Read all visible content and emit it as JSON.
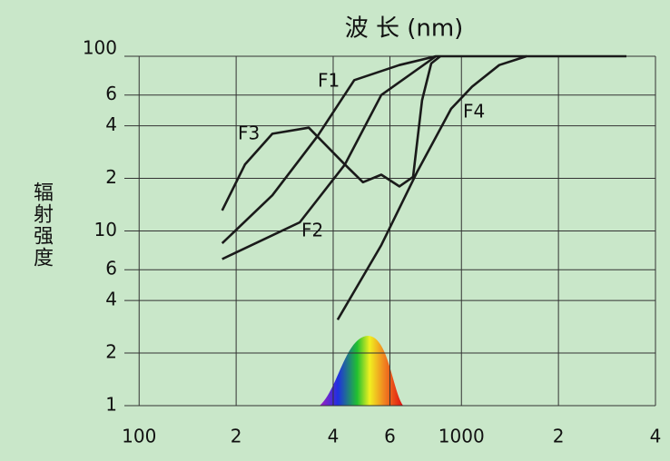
{
  "chart_data": {
    "type": "line",
    "xlabel": "波 长 (nm)",
    "ylabel": "辐射强度",
    "xscale": "log",
    "yscale": "log",
    "grid": true,
    "xlim": [
      90,
      4000
    ],
    "ylim": [
      1,
      100
    ],
    "xticks": [
      100,
      {
        "value": 200,
        "label": "2"
      },
      {
        "value": 400,
        "label": "4"
      },
      {
        "value": 600,
        "label": "6"
      },
      1000,
      {
        "value": 2000,
        "label": "2"
      },
      {
        "value": 4000,
        "label": "4"
      }
    ],
    "yticks": [
      1,
      2,
      4,
      6,
      10,
      {
        "value": 20,
        "label": "2"
      },
      {
        "value": 40,
        "label": "4"
      },
      {
        "value": 60,
        "label": "6"
      },
      100
    ],
    "series": [
      {
        "name": "F1",
        "color": "#1a1a1a",
        "x": [
          181,
          259,
          358,
          465,
          642,
          833,
          1592
        ],
        "y": [
          8.5,
          16,
          35,
          73,
          89,
          100,
          100
        ]
      },
      {
        "name": "F2",
        "color": "#1a1a1a",
        "x": [
          181,
          315,
          435,
          564,
          833
        ],
        "y": [
          6.9,
          11.2,
          24,
          60,
          100
        ]
      },
      {
        "name": "F3",
        "color": "#1a1a1a",
        "x": [
          181,
          213,
          259,
          336,
          435,
          495,
          564,
          642,
          708,
          755,
          806,
          860
        ],
        "y": [
          13.1,
          24,
          36,
          39,
          24,
          19,
          21,
          18,
          20.4,
          56,
          91,
          100
        ]
      },
      {
        "name": "F4",
        "color": "#1a1a1a",
        "x": [
          413,
          564,
          731,
          929,
          1079,
          1310,
          1592,
          3250
        ],
        "y": [
          3.1,
          8.3,
          22,
          50,
          67,
          89,
          100,
          100
        ]
      }
    ]
  }
}
